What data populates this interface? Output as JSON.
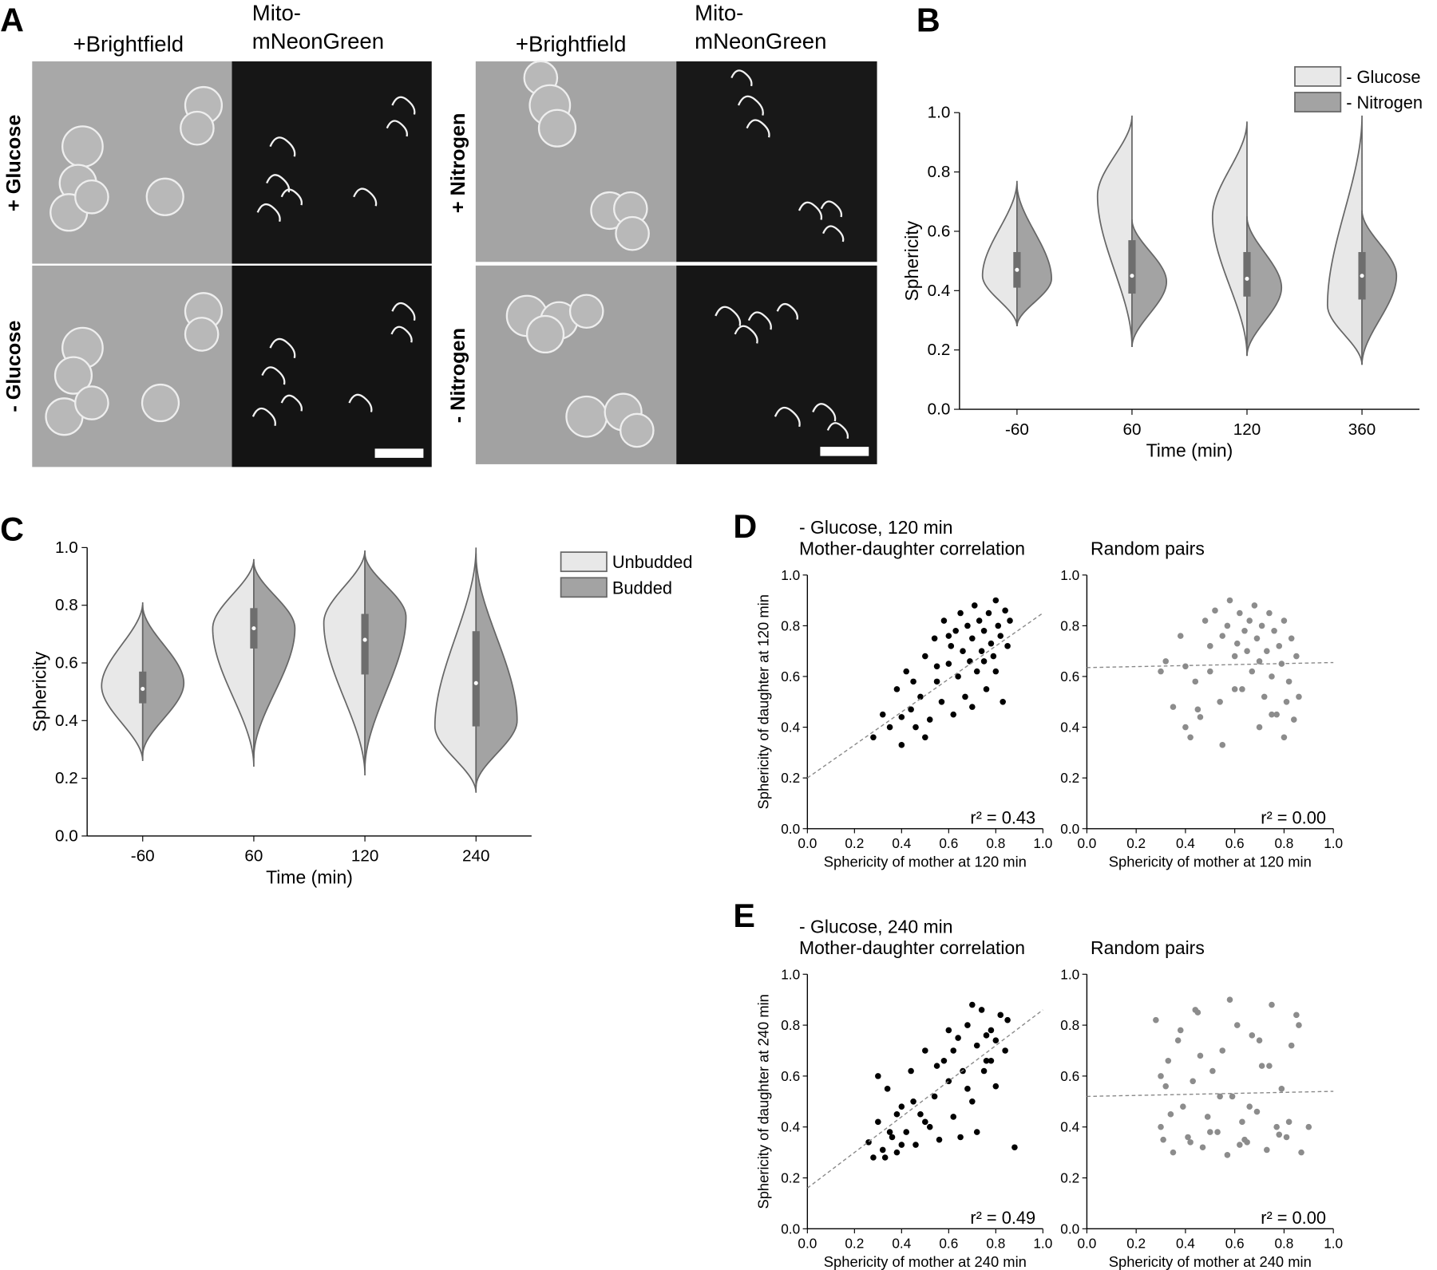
{
  "panel_labels": {
    "a": "A",
    "b": "B",
    "c": "C",
    "d": "D",
    "e": "E"
  },
  "micrographs": [
    {
      "brightfield": "+Brightfield",
      "fluorescence": [
        "Mito-",
        "mNeonGreen"
      ],
      "rows": [
        "+ Glucose",
        "- Glucose"
      ],
      "row_colors": [
        "#3a9ad9",
        "#e8392f"
      ]
    },
    {
      "brightfield": "+Brightfield",
      "fluorescence": [
        "Mito-",
        "mNeonGreen"
      ],
      "rows": [
        "+ Nitrogen",
        "- Nitrogen"
      ],
      "row_colors": [
        "#000000",
        "#000000"
      ]
    }
  ],
  "chart_data": [
    {
      "type": "violin",
      "ylabel": "Sphericity",
      "xlabel": "Time (min)",
      "categories": [
        "-60",
        "60",
        "120",
        "360"
      ],
      "ylim": [
        0,
        1
      ],
      "yticks": [
        {
          "value": 0,
          "label": "0.0"
        },
        0.2,
        0.4,
        0.6,
        0.8,
        {
          "value": 1,
          "label": "1.0"
        }
      ],
      "legend": "upper right",
      "series": [
        {
          "name": "- Glucose",
          "color": "#e8e8e8",
          "min": [
            0.28,
            0.21,
            0.18,
            0.15
          ],
          "peak": [
            0.45,
            0.72,
            0.65,
            0.35
          ],
          "max": [
            0.77,
            0.99,
            0.97,
            0.99
          ]
        },
        {
          "name": "- Nitrogen",
          "color": "#a3a3a3",
          "min": [
            0.28,
            0.21,
            0.18,
            0.15
          ],
          "peak": [
            0.44,
            0.43,
            0.41,
            0.45
          ],
          "max": [
            0.76,
            0.64,
            0.65,
            0.67
          ]
        }
      ],
      "box": {
        "q1": [
          0.41,
          0.39,
          0.38,
          0.37
        ],
        "median": [
          0.47,
          0.45,
          0.44,
          0.45
        ],
        "q3": [
          0.53,
          0.57,
          0.53,
          0.53
        ]
      }
    },
    {
      "type": "violin",
      "ylabel": "Sphericity",
      "xlabel": "Time (min)",
      "categories": [
        "-60",
        "60",
        "120",
        "240"
      ],
      "ylim": [
        0,
        1
      ],
      "yticks": [
        {
          "value": 0,
          "label": "0.0"
        },
        0.2,
        0.4,
        0.6,
        0.8,
        {
          "value": 1,
          "label": "1.0"
        }
      ],
      "legend": "upper right",
      "series": [
        {
          "name": "Unbudded",
          "color": "#e8e8e8",
          "min": [
            0.26,
            0.24,
            0.21,
            0.15
          ],
          "peak": [
            0.52,
            0.72,
            0.74,
            0.38
          ],
          "max": [
            0.81,
            0.96,
            0.99,
            1.0
          ]
        },
        {
          "name": "Budded",
          "color": "#a3a3a3",
          "min": [
            0.28,
            0.27,
            0.23,
            0.17
          ],
          "peak": [
            0.53,
            0.72,
            0.76,
            0.4
          ],
          "max": [
            0.8,
            0.95,
            0.98,
            0.98
          ]
        }
      ],
      "box": {
        "q1": [
          0.46,
          0.65,
          0.56,
          0.38
        ],
        "median": [
          0.51,
          0.72,
          0.68,
          0.53
        ],
        "q3": [
          0.57,
          0.79,
          0.77,
          0.71
        ]
      }
    },
    {
      "type": "scatter",
      "subtitle": "- Glucose, 120 min",
      "subtitle_color": "#e8392f",
      "title": "Mother-daughter correlation",
      "title_color": "#000000",
      "xlabel": "Sphericity of mother at 120 min",
      "ylabel": "Sphericity of daughter at 120 min",
      "annotation": "r² = 0.43",
      "color": "#000000",
      "xlim": [
        0,
        1
      ],
      "ylim": [
        0,
        1
      ],
      "xticks": [
        {
          "value": 0,
          "label": "0.0"
        },
        0.2,
        0.4,
        0.6,
        0.8,
        {
          "value": 1,
          "label": "1.0"
        }
      ],
      "yticks": [
        {
          "value": 0,
          "label": "0.0"
        },
        0.2,
        0.4,
        0.6,
        0.8,
        {
          "value": 1,
          "label": "1.0"
        }
      ],
      "fit": {
        "intercept": 0.2,
        "slope": 0.65
      },
      "x": [
        0.28,
        0.32,
        0.35,
        0.38,
        0.4,
        0.42,
        0.44,
        0.46,
        0.48,
        0.5,
        0.52,
        0.54,
        0.55,
        0.57,
        0.58,
        0.6,
        0.61,
        0.62,
        0.63,
        0.64,
        0.65,
        0.66,
        0.67,
        0.68,
        0.69,
        0.7,
        0.71,
        0.72,
        0.73,
        0.74,
        0.75,
        0.76,
        0.77,
        0.78,
        0.79,
        0.8,
        0.81,
        0.82,
        0.83,
        0.84,
        0.85,
        0.86,
        0.4,
        0.45,
        0.5,
        0.55,
        0.6,
        0.7,
        0.75,
        0.8
      ],
      "y": [
        0.36,
        0.45,
        0.4,
        0.55,
        0.33,
        0.62,
        0.47,
        0.4,
        0.52,
        0.68,
        0.43,
        0.75,
        0.58,
        0.5,
        0.82,
        0.65,
        0.72,
        0.45,
        0.78,
        0.6,
        0.85,
        0.7,
        0.52,
        0.8,
        0.66,
        0.75,
        0.88,
        0.62,
        0.82,
        0.7,
        0.78,
        0.55,
        0.85,
        0.73,
        0.68,
        0.9,
        0.8,
        0.76,
        0.5,
        0.86,
        0.72,
        0.82,
        0.44,
        0.58,
        0.36,
        0.64,
        0.76,
        0.48,
        0.66,
        0.62
      ]
    },
    {
      "type": "scatter",
      "title": "Random pairs",
      "title_color": "#8c8c8c",
      "xlabel": "Sphericity of mother at 120 min",
      "annotation": "r² = 0.00",
      "color": "#8c8c8c",
      "xlim": [
        0,
        1
      ],
      "ylim": [
        0,
        1
      ],
      "xticks": [
        {
          "value": 0,
          "label": "0.0"
        },
        0.2,
        0.4,
        0.6,
        0.8,
        {
          "value": 1,
          "label": "1.0"
        }
      ],
      "yticks": [
        {
          "value": 0,
          "label": "0.0"
        },
        0.2,
        0.4,
        0.6,
        0.8,
        {
          "value": 1,
          "label": "1.0"
        }
      ],
      "fit": {
        "intercept": 0.635,
        "slope": 0.02
      },
      "x": [
        0.3,
        0.32,
        0.35,
        0.38,
        0.4,
        0.42,
        0.44,
        0.46,
        0.48,
        0.5,
        0.52,
        0.54,
        0.55,
        0.57,
        0.58,
        0.6,
        0.61,
        0.62,
        0.63,
        0.64,
        0.65,
        0.66,
        0.67,
        0.68,
        0.69,
        0.7,
        0.71,
        0.72,
        0.73,
        0.74,
        0.75,
        0.76,
        0.77,
        0.78,
        0.79,
        0.8,
        0.81,
        0.82,
        0.83,
        0.84,
        0.85,
        0.86,
        0.4,
        0.45,
        0.5,
        0.55,
        0.6,
        0.7,
        0.75,
        0.8
      ],
      "y": [
        0.62,
        0.66,
        0.48,
        0.76,
        0.64,
        0.36,
        0.58,
        0.44,
        0.82,
        0.72,
        0.86,
        0.5,
        0.76,
        0.8,
        0.9,
        0.68,
        0.73,
        0.85,
        0.55,
        0.78,
        0.7,
        0.82,
        0.62,
        0.88,
        0.75,
        0.66,
        0.8,
        0.52,
        0.7,
        0.85,
        0.6,
        0.78,
        0.45,
        0.72,
        0.65,
        0.82,
        0.5,
        0.58,
        0.75,
        0.43,
        0.68,
        0.52,
        0.4,
        0.47,
        0.62,
        0.33,
        0.55,
        0.4,
        0.45,
        0.36
      ]
    },
    {
      "type": "scatter",
      "subtitle": "- Glucose, 240 min",
      "subtitle_color": "#e8392f",
      "title": "Mother-daughter correlation",
      "title_color": "#000000",
      "xlabel": "Sphericity of mother at 240 min",
      "ylabel": "Sphericity of daughter at 240 min",
      "annotation": "r² = 0.49",
      "color": "#000000",
      "xlim": [
        0,
        1
      ],
      "ylim": [
        0,
        1
      ],
      "xticks": [
        {
          "value": 0,
          "label": "0.0"
        },
        0.2,
        0.4,
        0.6,
        0.8,
        {
          "value": 1,
          "label": "1.0"
        }
      ],
      "yticks": [
        {
          "value": 0,
          "label": "0.0"
        },
        0.2,
        0.4,
        0.6,
        0.8,
        {
          "value": 1,
          "label": "1.0"
        }
      ],
      "fit": {
        "intercept": 0.16,
        "slope": 0.7
      },
      "x": [
        0.26,
        0.28,
        0.3,
        0.32,
        0.34,
        0.36,
        0.38,
        0.4,
        0.42,
        0.44,
        0.46,
        0.48,
        0.5,
        0.52,
        0.54,
        0.56,
        0.58,
        0.6,
        0.62,
        0.64,
        0.66,
        0.68,
        0.7,
        0.72,
        0.74,
        0.76,
        0.78,
        0.8,
        0.82,
        0.84,
        0.3,
        0.35,
        0.4,
        0.45,
        0.5,
        0.55,
        0.6,
        0.65,
        0.7,
        0.75,
        0.8,
        0.85,
        0.33,
        0.38,
        0.62,
        0.68,
        0.72,
        0.76,
        0.78,
        0.88
      ],
      "y": [
        0.34,
        0.28,
        0.42,
        0.31,
        0.55,
        0.36,
        0.3,
        0.48,
        0.38,
        0.62,
        0.33,
        0.45,
        0.7,
        0.4,
        0.52,
        0.35,
        0.66,
        0.58,
        0.44,
        0.75,
        0.62,
        0.8,
        0.5,
        0.72,
        0.86,
        0.66,
        0.78,
        0.56,
        0.84,
        0.7,
        0.6,
        0.38,
        0.33,
        0.5,
        0.42,
        0.64,
        0.78,
        0.36,
        0.88,
        0.62,
        0.74,
        0.82,
        0.28,
        0.45,
        0.7,
        0.55,
        0.38,
        0.76,
        0.66,
        0.32
      ]
    },
    {
      "type": "scatter",
      "title": "Random pairs",
      "title_color": "#8c8c8c",
      "xlabel": "Sphericity of mother at 240 min",
      "annotation": "r² = 0.00",
      "color": "#8c8c8c",
      "xlim": [
        0,
        1
      ],
      "ylim": [
        0,
        1
      ],
      "xticks": [
        {
          "value": 0,
          "label": "0.0"
        },
        0.2,
        0.4,
        0.6,
        0.8,
        {
          "value": 1,
          "label": "1.0"
        }
      ],
      "yticks": [
        {
          "value": 0,
          "label": "0.0"
        },
        0.2,
        0.4,
        0.6,
        0.8,
        {
          "value": 1,
          "label": "1.0"
        }
      ],
      "fit": {
        "intercept": 0.52,
        "slope": 0.02
      },
      "x": [
        0.28,
        0.3,
        0.31,
        0.33,
        0.35,
        0.37,
        0.39,
        0.41,
        0.43,
        0.45,
        0.47,
        0.49,
        0.51,
        0.53,
        0.55,
        0.57,
        0.59,
        0.61,
        0.63,
        0.65,
        0.67,
        0.69,
        0.71,
        0.73,
        0.75,
        0.77,
        0.79,
        0.81,
        0.83,
        0.85,
        0.87,
        0.3,
        0.34,
        0.38,
        0.42,
        0.46,
        0.5,
        0.54,
        0.58,
        0.62,
        0.66,
        0.7,
        0.74,
        0.78,
        0.82,
        0.86,
        0.32,
        0.44,
        0.64,
        0.9
      ],
      "y": [
        0.82,
        0.4,
        0.35,
        0.66,
        0.3,
        0.74,
        0.48,
        0.36,
        0.58,
        0.85,
        0.32,
        0.44,
        0.62,
        0.38,
        0.7,
        0.29,
        0.52,
        0.8,
        0.42,
        0.34,
        0.76,
        0.46,
        0.64,
        0.31,
        0.88,
        0.4,
        0.55,
        0.36,
        0.72,
        0.84,
        0.3,
        0.6,
        0.45,
        0.78,
        0.34,
        0.68,
        0.38,
        0.52,
        0.9,
        0.33,
        0.48,
        0.74,
        0.64,
        0.37,
        0.42,
        0.8,
        0.56,
        0.86,
        0.35,
        0.4
      ]
    }
  ]
}
